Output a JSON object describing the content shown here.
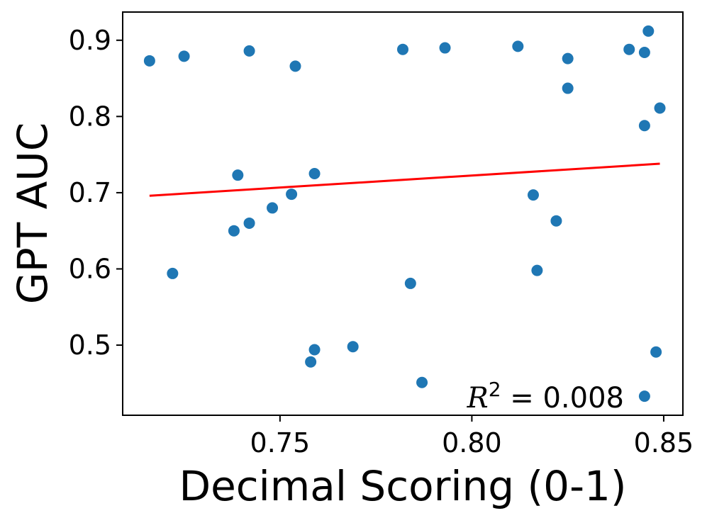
{
  "chart_data": {
    "type": "scatter",
    "xlabel": "Decimal Scoring (0-1)",
    "ylabel": "GPT AUC",
    "xlim": [
      0.709,
      0.855
    ],
    "ylim": [
      0.408,
      0.937
    ],
    "xticks": [
      0.75,
      0.8,
      0.85
    ],
    "xtick_labels": [
      "0.75",
      "0.80",
      "0.85"
    ],
    "yticks": [
      0.5,
      0.6,
      0.7,
      0.8,
      0.9
    ],
    "ytick_labels": [
      "0.5",
      "0.6",
      "0.7",
      "0.8",
      "0.9"
    ],
    "grid": false,
    "point_color": "#1f77b4",
    "line_color": "#ff0000",
    "points": [
      {
        "x": 0.716,
        "y": 0.873
      },
      {
        "x": 0.722,
        "y": 0.594
      },
      {
        "x": 0.725,
        "y": 0.879
      },
      {
        "x": 0.738,
        "y": 0.65
      },
      {
        "x": 0.739,
        "y": 0.723
      },
      {
        "x": 0.742,
        "y": 0.886
      },
      {
        "x": 0.742,
        "y": 0.66
      },
      {
        "x": 0.748,
        "y": 0.68
      },
      {
        "x": 0.753,
        "y": 0.698
      },
      {
        "x": 0.754,
        "y": 0.866
      },
      {
        "x": 0.758,
        "y": 0.478
      },
      {
        "x": 0.759,
        "y": 0.494
      },
      {
        "x": 0.759,
        "y": 0.725
      },
      {
        "x": 0.769,
        "y": 0.498
      },
      {
        "x": 0.782,
        "y": 0.888
      },
      {
        "x": 0.784,
        "y": 0.581
      },
      {
        "x": 0.787,
        "y": 0.451
      },
      {
        "x": 0.793,
        "y": 0.89
      },
      {
        "x": 0.812,
        "y": 0.892
      },
      {
        "x": 0.816,
        "y": 0.697
      },
      {
        "x": 0.817,
        "y": 0.598
      },
      {
        "x": 0.822,
        "y": 0.663
      },
      {
        "x": 0.825,
        "y": 0.837
      },
      {
        "x": 0.825,
        "y": 0.876
      },
      {
        "x": 0.841,
        "y": 0.888
      },
      {
        "x": 0.845,
        "y": 0.788
      },
      {
        "x": 0.845,
        "y": 0.884
      },
      {
        "x": 0.846,
        "y": 0.912
      },
      {
        "x": 0.845,
        "y": 0.433
      },
      {
        "x": 0.848,
        "y": 0.491
      },
      {
        "x": 0.849,
        "y": 0.811
      }
    ],
    "fit_line": {
      "x": [
        0.716,
        0.849
      ],
      "y": [
        0.696,
        0.738
      ]
    },
    "annotation": {
      "prefix": "R",
      "superscript": "2",
      "text": " = 0.008"
    }
  }
}
